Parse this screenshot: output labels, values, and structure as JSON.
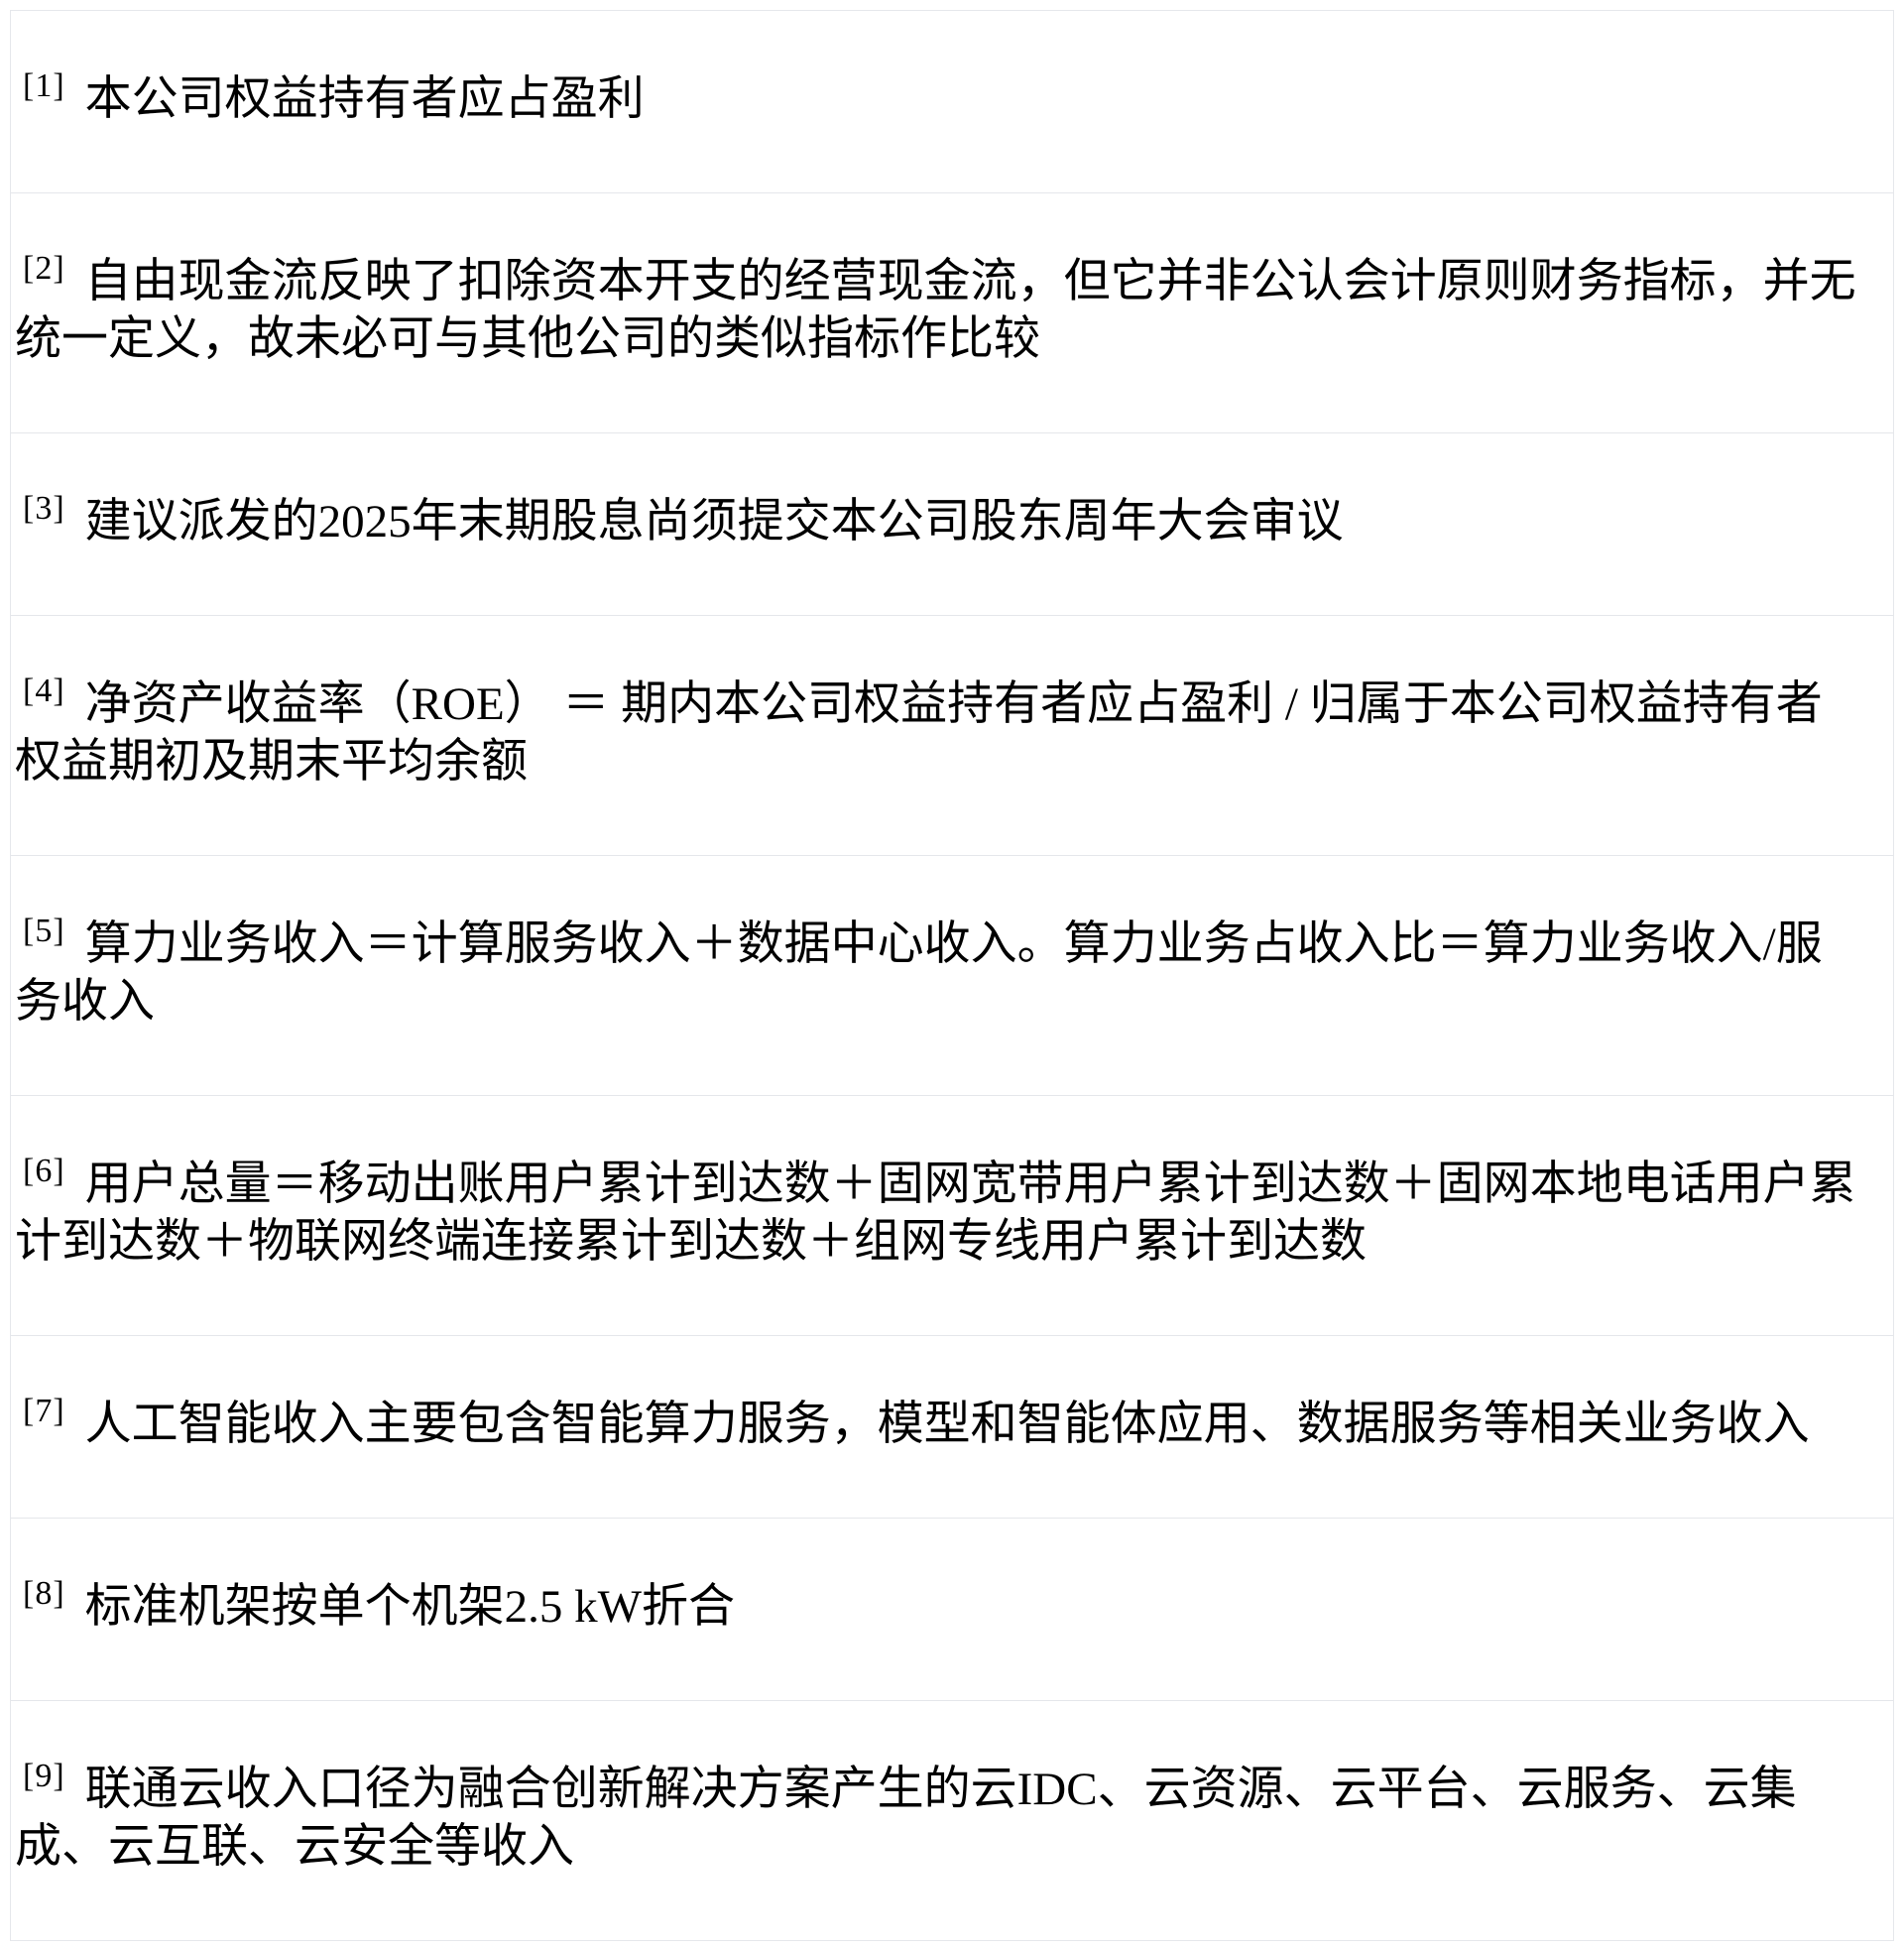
{
  "page": {
    "background_color": "#ffffff",
    "border_color": "#e5e7eb",
    "text_color": "#000000"
  },
  "footnotes": [
    {
      "marker": "[1]",
      "text": "本公司权益持有者应占盈利"
    },
    {
      "marker": "[2]",
      "text": "自由现金流反映了扣除资本开支的经营现金流，但它并非公认会计原则财务指标，并无统一定义，故未必可与其他公司的类似指标作比较"
    },
    {
      "marker": "[3]",
      "text": "建议派发的2025年末期股息尚须提交本公司股东周年大会审议"
    },
    {
      "marker": "[4]",
      "text": "净资产收益率（ROE） ＝ 期内本公司权益持有者应占盈利 / 归属于本公司权益持有者权益期初及期末平均余额"
    },
    {
      "marker": "[5]",
      "text": "算力业务收入＝计算服务收入＋数据中心收入。算力业务占收入比＝算力业务收入/服务收入"
    },
    {
      "marker": "[6]",
      "text": "用户总量＝移动出账用户累计到达数＋固网宽带用户累计到达数＋固网本地电话用户累计到达数＋物联网终端连接累计到达数＋组网专线用户累计到达数"
    },
    {
      "marker": "[7]",
      "text": "人工智能收入主要包含智能算力服务，模型和智能体应用、数据服务等相关业务收入"
    },
    {
      "marker": "[8]",
      "text": "标准机架按单个机架2.5 kW折合"
    },
    {
      "marker": "[9]",
      "text": "联通云收入口径为融合创新解决方案产生的云IDC、云资源、云平台、云服务、云集成、云互联、云安全等收入"
    }
  ]
}
